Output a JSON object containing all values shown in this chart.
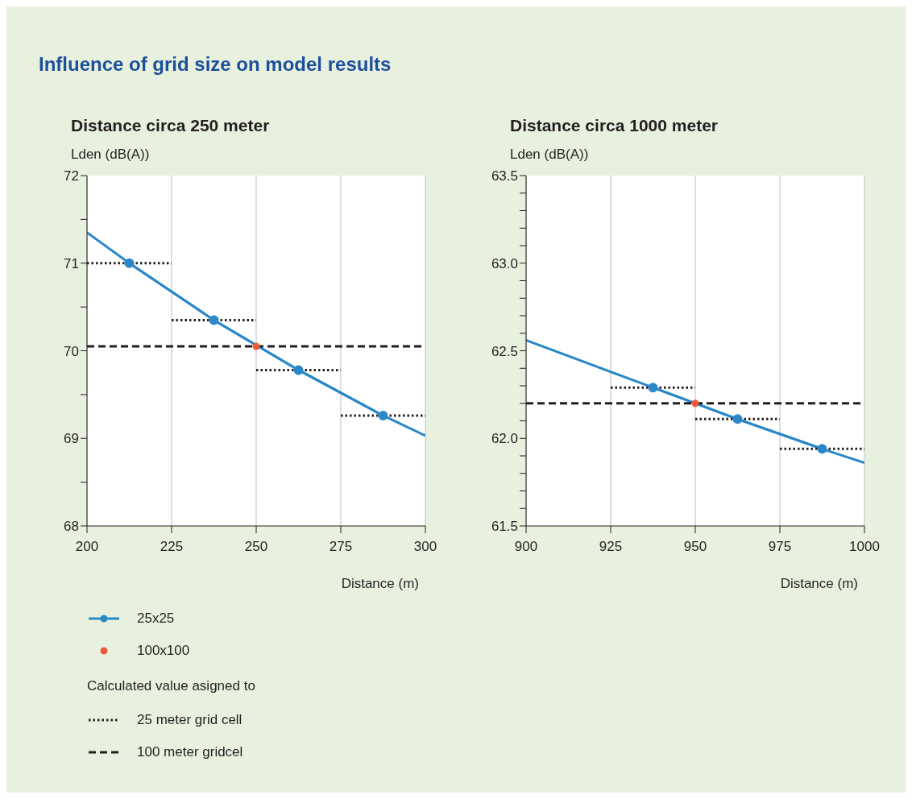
{
  "chart_data": [
    {
      "type": "line",
      "title": "Influence of grid size on model results",
      "subtitle": "Distance circa 250 meter",
      "ylabel": "Lden (dB(A))",
      "xlabel": "Distance (m)",
      "xlim": [
        200,
        300
      ],
      "xticks": [
        200,
        225,
        250,
        275,
        300
      ],
      "ylim": [
        68,
        72
      ],
      "yticks": [
        68,
        {
          "value": 68.5,
          "label": null
        },
        69,
        {
          "value": 69.5,
          "label": null
        },
        70,
        {
          "value": 70.5,
          "label": null
        },
        71,
        {
          "value": 71.5,
          "label": null
        },
        72
      ],
      "grid": "x",
      "legend": "bottom",
      "legend_title": "Calculated value asigned to",
      "series": [
        {
          "name": "25x25",
          "color": "#2a88c8",
          "marker": "circle",
          "x": [
            212.5,
            237.5,
            262.5,
            287.5
          ],
          "values": [
            71.0,
            70.35,
            69.78,
            69.26
          ]
        },
        {
          "color": "#2a88c8",
          "marker": "none",
          "x": [
            200,
            212.5,
            237.5,
            262.5,
            287.5,
            300
          ],
          "values": [
            71.35,
            71.0,
            70.35,
            69.78,
            69.26,
            69.03
          ]
        },
        {
          "type": "scatter",
          "name": "100x100",
          "color": "#f05a3c",
          "x": [
            250
          ],
          "values": [
            70.05
          ]
        },
        {
          "name": "25 meter grid cell",
          "color": "#231f20",
          "marker": "none",
          "line_style": "dotted",
          "x": [
            200,
            225
          ],
          "values": [
            71.0,
            71.0
          ]
        },
        {
          "color": "#231f20",
          "marker": "none",
          "line_style": "dotted",
          "x": [
            225,
            250
          ],
          "values": [
            70.35,
            70.35
          ]
        },
        {
          "color": "#231f20",
          "marker": "none",
          "line_style": "dotted",
          "x": [
            250,
            275
          ],
          "values": [
            69.78,
            69.78
          ]
        },
        {
          "color": "#231f20",
          "marker": "none",
          "line_style": "dotted",
          "x": [
            275,
            300
          ],
          "values": [
            69.26,
            69.26
          ]
        },
        {
          "name": "100 meter gridcel",
          "color": "#231f20",
          "marker": "none",
          "line_style": "dashed",
          "x": [
            200,
            300
          ],
          "values": [
            70.05,
            70.05
          ]
        }
      ]
    },
    {
      "type": "line",
      "subtitle": "Distance circa 1000 meter",
      "ylabel": "Lden (dB(A))",
      "xlabel": "Distance (m)",
      "xlim": [
        900,
        1000
      ],
      "xticks": [
        900,
        925,
        950,
        975,
        1000
      ],
      "ylim": [
        61.5,
        63.5
      ],
      "yticks": [
        61.5,
        {
          "value": 61.6,
          "label": null
        },
        {
          "value": 61.7,
          "label": null
        },
        {
          "value": 61.8,
          "label": null
        },
        {
          "value": 61.9,
          "label": null
        },
        {
          "value": 62,
          "label": "62.0"
        },
        {
          "value": 62.1,
          "label": null
        },
        {
          "value": 62.2,
          "label": null
        },
        {
          "value": 62.3,
          "label": null
        },
        {
          "value": 62.4,
          "label": null
        },
        62.5,
        {
          "value": 62.6,
          "label": null
        },
        {
          "value": 62.7,
          "label": null
        },
        {
          "value": 62.8,
          "label": null
        },
        {
          "value": 62.9,
          "label": null
        },
        {
          "value": 63,
          "label": "63.0"
        },
        {
          "value": 63.1,
          "label": null
        },
        {
          "value": 63.2,
          "label": null
        },
        {
          "value": 63.3,
          "label": null
        },
        {
          "value": 63.4,
          "label": null
        },
        63.5
      ],
      "grid": "x",
      "series": [
        {
          "color": "#2a88c8",
          "marker": "circle",
          "x": [
            937.5,
            962.5,
            987.5
          ],
          "values": [
            62.29,
            62.11,
            61.94
          ]
        },
        {
          "color": "#2a88c8",
          "marker": "none",
          "x": [
            900,
            937.5,
            962.5,
            987.5,
            1000
          ],
          "values": [
            62.56,
            62.29,
            62.11,
            61.94,
            61.86
          ]
        },
        {
          "type": "scatter",
          "color": "#f05a3c",
          "x": [
            950
          ],
          "values": [
            62.2
          ]
        },
        {
          "color": "#231f20",
          "marker": "none",
          "line_style": "dotted",
          "x": [
            925,
            950
          ],
          "values": [
            62.29,
            62.29
          ]
        },
        {
          "color": "#231f20",
          "marker": "none",
          "line_style": "dotted",
          "x": [
            950,
            975
          ],
          "values": [
            62.11,
            62.11
          ]
        },
        {
          "color": "#231f20",
          "marker": "none",
          "line_style": "dotted",
          "x": [
            975,
            1000
          ],
          "values": [
            61.94,
            61.94
          ]
        },
        {
          "color": "#231f20",
          "marker": "none",
          "line_style": "dashed",
          "x": [
            900,
            1000
          ],
          "values": [
            62.2,
            62.2
          ]
        }
      ]
    }
  ]
}
